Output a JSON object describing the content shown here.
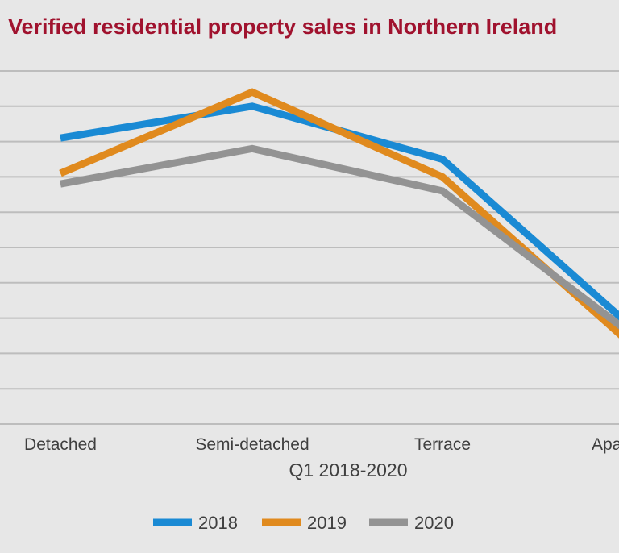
{
  "chart_data": {
    "type": "line",
    "title": "Verified residential property sales in Northern Ireland",
    "xlabel": "Q1 2018-2020",
    "ylabel": "",
    "categories": [
      "Detached",
      "Semi-detached",
      "Terrace",
      "Apartment"
    ],
    "category_labels_visible": [
      "Detached",
      "Semi-detached",
      "Terrace",
      "Apa"
    ],
    "ylim": [
      0,
      10
    ],
    "grid": true,
    "legend_position": "bottom",
    "series": [
      {
        "name": "2018",
        "color": "#1a8ad4",
        "values": [
          8.1,
          9.0,
          7.5,
          2.7
        ]
      },
      {
        "name": "2019",
        "color": "#e08a1e",
        "values": [
          7.1,
          9.4,
          7.0,
          2.2
        ]
      },
      {
        "name": "2020",
        "color": "#939393",
        "values": [
          6.8,
          7.8,
          6.6,
          2.5
        ]
      }
    ]
  }
}
